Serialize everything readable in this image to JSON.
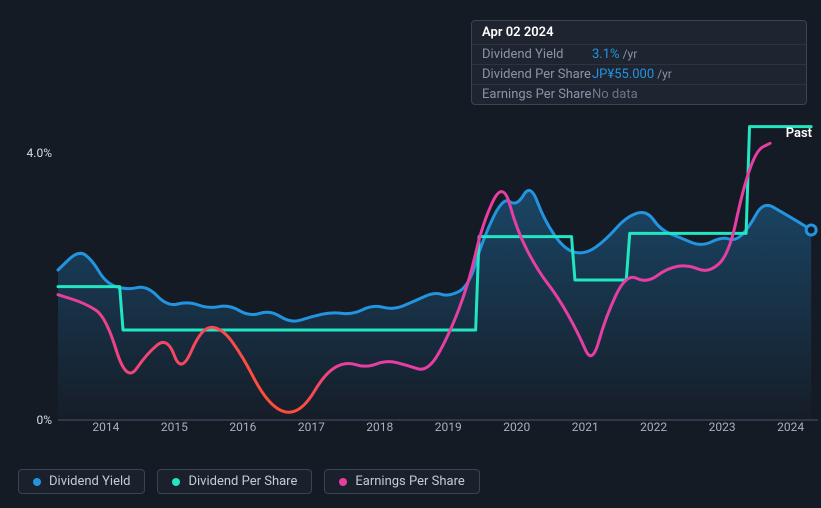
{
  "tooltip": {
    "date": "Apr 02 2024",
    "rows": [
      {
        "label": "Dividend Yield",
        "value": "3.1%",
        "unit": "/yr"
      },
      {
        "label": "Dividend Per Share",
        "value": "JP¥55.000",
        "unit": "/yr"
      },
      {
        "label": "Earnings Per Share",
        "nodata": "No data"
      }
    ]
  },
  "chart": {
    "type": "line",
    "background_color": "#151b24",
    "grid_color": "#2a3240",
    "ylim": [
      0,
      4.5
    ],
    "y_ticks": [
      {
        "v": 0,
        "label": "0%"
      },
      {
        "v": 4,
        "label": "4.0%"
      }
    ],
    "x_years": [
      2014,
      2015,
      2016,
      2017,
      2018,
      2019,
      2020,
      2021,
      2022,
      2023,
      2024
    ],
    "x_range": [
      2013.3,
      2024.4
    ],
    "past_label": "Past",
    "series": [
      {
        "name": "Dividend Yield",
        "color": "#2394df",
        "fill": "rgba(35,148,223,0.22)",
        "width": 3,
        "data": [
          [
            2013.3,
            2.25
          ],
          [
            2013.6,
            2.55
          ],
          [
            2013.8,
            2.4
          ],
          [
            2014.0,
            2.05
          ],
          [
            2014.3,
            1.95
          ],
          [
            2014.6,
            2.02
          ],
          [
            2014.9,
            1.7
          ],
          [
            2015.2,
            1.78
          ],
          [
            2015.5,
            1.67
          ],
          [
            2015.8,
            1.73
          ],
          [
            2016.1,
            1.55
          ],
          [
            2016.4,
            1.65
          ],
          [
            2016.7,
            1.45
          ],
          [
            2017.0,
            1.55
          ],
          [
            2017.3,
            1.62
          ],
          [
            2017.6,
            1.58
          ],
          [
            2017.9,
            1.73
          ],
          [
            2018.2,
            1.65
          ],
          [
            2018.5,
            1.78
          ],
          [
            2018.8,
            1.92
          ],
          [
            2019.0,
            1.85
          ],
          [
            2019.3,
            2.0
          ],
          [
            2019.5,
            2.7
          ],
          [
            2019.8,
            3.35
          ],
          [
            2020.0,
            3.2
          ],
          [
            2020.2,
            3.55
          ],
          [
            2020.4,
            3.0
          ],
          [
            2020.7,
            2.55
          ],
          [
            2021.0,
            2.48
          ],
          [
            2021.3,
            2.7
          ],
          [
            2021.6,
            3.05
          ],
          [
            2021.9,
            3.15
          ],
          [
            2022.1,
            2.85
          ],
          [
            2022.4,
            2.73
          ],
          [
            2022.7,
            2.6
          ],
          [
            2023.0,
            2.75
          ],
          [
            2023.2,
            2.68
          ],
          [
            2023.4,
            2.9
          ],
          [
            2023.6,
            3.28
          ],
          [
            2023.9,
            3.1
          ],
          [
            2024.1,
            2.98
          ],
          [
            2024.3,
            2.85
          ]
        ]
      },
      {
        "name": "Dividend Per Share",
        "color": "#21e6c1",
        "width": 3,
        "data": [
          [
            2013.3,
            2.0
          ],
          [
            2014.2,
            2.0
          ],
          [
            2014.25,
            1.35
          ],
          [
            2019.4,
            1.35
          ],
          [
            2019.45,
            2.75
          ],
          [
            2020.8,
            2.75
          ],
          [
            2020.85,
            2.1
          ],
          [
            2021.6,
            2.1
          ],
          [
            2021.65,
            2.8
          ],
          [
            2023.35,
            2.8
          ],
          [
            2023.4,
            4.4
          ],
          [
            2024.3,
            4.4
          ]
        ]
      },
      {
        "name": "Earnings Per Share",
        "color": "#e63ea2",
        "width": 3,
        "gradient_stops": [
          {
            "t": 0.0,
            "c": "#e63ea2"
          },
          {
            "t": 0.28,
            "c": "#ff4d3a"
          },
          {
            "t": 0.34,
            "c": "#ff4d3a"
          },
          {
            "t": 0.4,
            "c": "#e63ea2"
          },
          {
            "t": 1.0,
            "c": "#e63ea2"
          }
        ],
        "data": [
          [
            2013.3,
            1.88
          ],
          [
            2013.7,
            1.75
          ],
          [
            2014.0,
            1.55
          ],
          [
            2014.3,
            0.55
          ],
          [
            2014.6,
            1.0
          ],
          [
            2014.9,
            1.25
          ],
          [
            2015.1,
            0.68
          ],
          [
            2015.4,
            1.4
          ],
          [
            2015.7,
            1.38
          ],
          [
            2016.0,
            0.95
          ],
          [
            2016.3,
            0.35
          ],
          [
            2016.6,
            0.08
          ],
          [
            2016.9,
            0.18
          ],
          [
            2017.2,
            0.7
          ],
          [
            2017.5,
            0.88
          ],
          [
            2017.8,
            0.78
          ],
          [
            2018.1,
            0.9
          ],
          [
            2018.4,
            0.82
          ],
          [
            2018.7,
            0.72
          ],
          [
            2019.0,
            1.25
          ],
          [
            2019.3,
            2.05
          ],
          [
            2019.5,
            2.95
          ],
          [
            2019.8,
            3.6
          ],
          [
            2020.0,
            2.85
          ],
          [
            2020.3,
            2.25
          ],
          [
            2020.6,
            1.85
          ],
          [
            2020.9,
            1.3
          ],
          [
            2021.1,
            0.82
          ],
          [
            2021.3,
            1.55
          ],
          [
            2021.6,
            2.2
          ],
          [
            2021.9,
            2.05
          ],
          [
            2022.2,
            2.28
          ],
          [
            2022.5,
            2.33
          ],
          [
            2022.8,
            2.2
          ],
          [
            2023.1,
            2.48
          ],
          [
            2023.3,
            3.45
          ],
          [
            2023.5,
            4.05
          ],
          [
            2023.7,
            4.15
          ]
        ]
      }
    ]
  },
  "legend": [
    {
      "label": "Dividend Yield",
      "color": "#2394df"
    },
    {
      "label": "Dividend Per Share",
      "color": "#21e6c1"
    },
    {
      "label": "Earnings Per Share",
      "color": "#e63ea2"
    }
  ]
}
